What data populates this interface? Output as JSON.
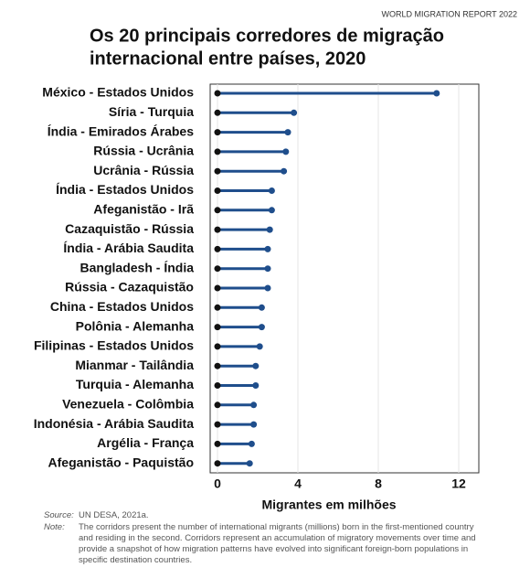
{
  "header": "WORLD MIGRATION REPORT 2022",
  "chart_data": {
    "type": "lollipop",
    "title": [
      "Os 20 principais corredores de migração",
      "internacional entre países, 2020"
    ],
    "x_label": "Migrantes em milhões",
    "categories": [
      "México - Estados Unidos",
      "Síria - Turquia",
      "Índia - Emirados Árabes",
      "Rússia - Ucrânia",
      "Ucrânia - Rússia",
      "Índia - Estados Unidos",
      "Afeganistão - Irã",
      "Cazaquistão - Rússia",
      "Índia - Arábia Saudita",
      "Bangladesh - Índia",
      "Rússia - Cazaquistão",
      "China - Estados Unidos",
      "Polônia - Alemanha",
      "Filipinas - Estados Unidos",
      "Mianmar - Tailândia",
      "Turquia - Alemanha",
      "Venezuela - Colômbia",
      "Indonésia - Arábia Saudita",
      "Argélia - França",
      "Afeganistão - Paquistão"
    ],
    "values": [
      10.9,
      3.8,
      3.5,
      3.4,
      3.3,
      2.7,
      2.7,
      2.6,
      2.5,
      2.5,
      2.5,
      2.2,
      2.2,
      2.1,
      1.9,
      1.9,
      1.8,
      1.8,
      1.7,
      1.6
    ],
    "color": "#1f4e8c",
    "xlim": [
      0,
      13
    ],
    "xticks": [
      0,
      4,
      8,
      12
    ],
    "grid": true
  },
  "source": {
    "label": "Source:",
    "text": "UN DESA, 2021a."
  },
  "note": {
    "label": "Note:",
    "text": "The corridors present the number of international migrants (millions) born in the first-mentioned country and residing in the second. Corridors represent an accumulation of migratory movements over time and provide a snapshot of how migration patterns have evolved into significant foreign-born populations in specific destination countries."
  }
}
